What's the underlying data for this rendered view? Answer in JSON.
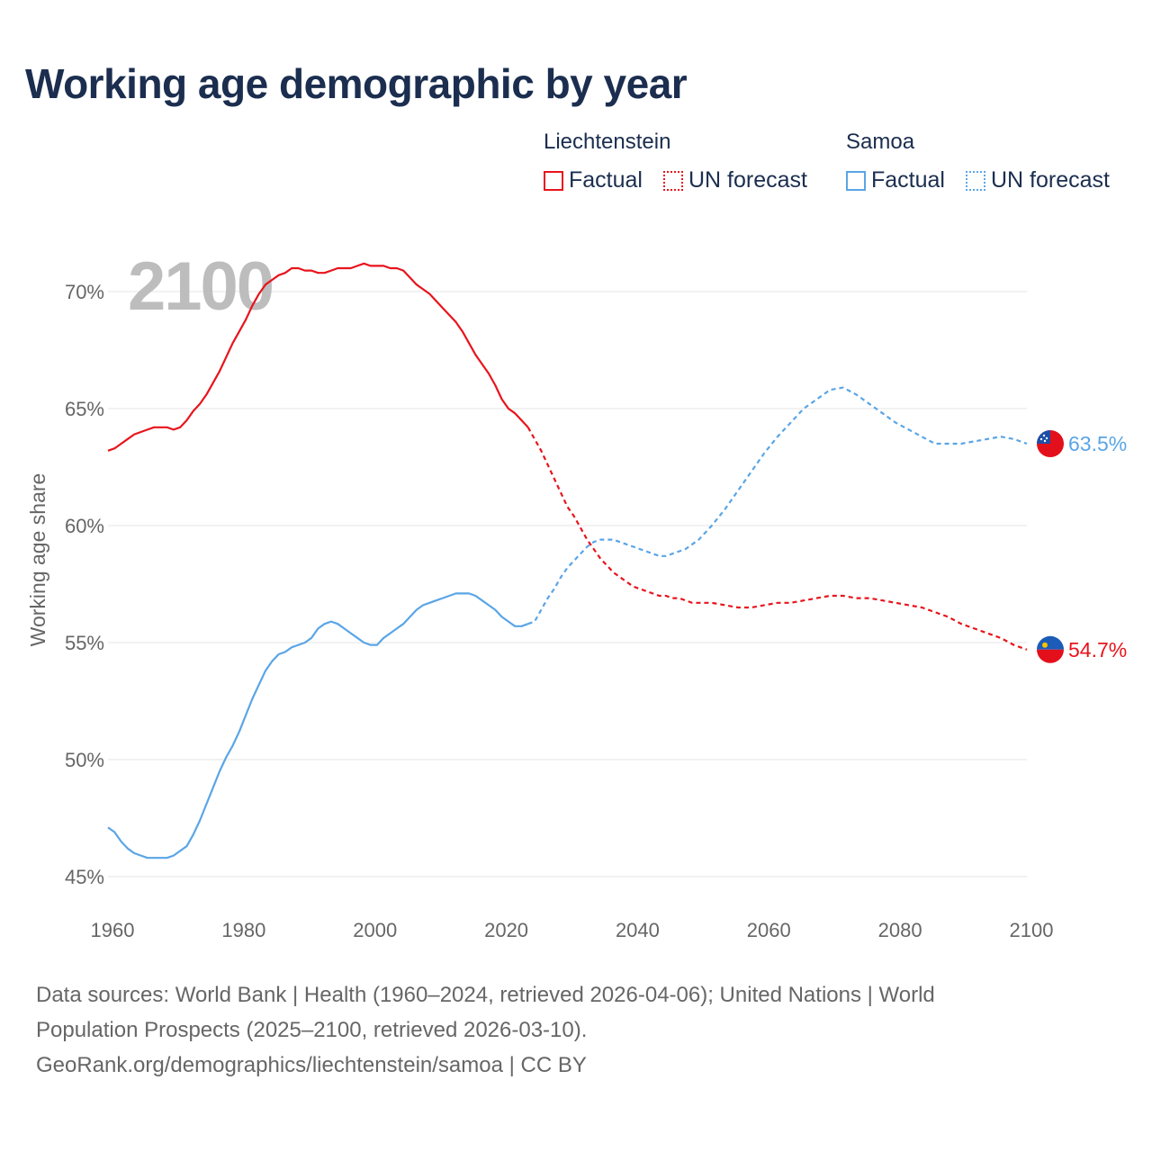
{
  "title": "Working age demographic by year",
  "legend": {
    "groups": [
      {
        "country": "Liechtenstein",
        "factual_label": "Factual",
        "forecast_label": "UN forecast",
        "color": "#e8141c"
      },
      {
        "country": "Samoa",
        "factual_label": "Factual",
        "forecast_label": "UN forecast",
        "color": "#5aa5e6"
      }
    ]
  },
  "colors": {
    "liechtenstein": "#e8141c",
    "samoa": "#5aa5e6",
    "grid": "#e6e6e6",
    "axis_text": "#666666",
    "year_watermark": "#bdbdbd"
  },
  "footer": {
    "line1": "Data sources: World Bank | Health (1960–2024, retrieved 2026-04-06); United Nations | World",
    "line2": "Population Prospects (2025–2100, retrieved 2026-03-10).",
    "line3": "GeoRank.org/demographics/liechtenstein/samoa | CC BY"
  },
  "chart_data": {
    "type": "line",
    "title": "Working age demographic by year",
    "ylabel": "Working age share",
    "xlabel": "",
    "year_watermark": "2100",
    "xlim": [
      1960,
      2100
    ],
    "ylim": [
      45,
      72
    ],
    "x_ticks": [
      1960,
      1980,
      2000,
      2020,
      2040,
      2060,
      2080,
      2100
    ],
    "y_ticks": [
      45,
      50,
      55,
      60,
      65,
      70
    ],
    "y_tick_labels": [
      "45%",
      "50%",
      "55%",
      "60%",
      "65%",
      "70%"
    ],
    "factual_range": [
      1960,
      2024
    ],
    "forecast_range": [
      2024,
      2100
    ],
    "series": [
      {
        "name": "Liechtenstein",
        "color": "#e8141c",
        "end_label": "54.7%",
        "points": [
          [
            1960,
            63.2
          ],
          [
            1961,
            63.3
          ],
          [
            1962,
            63.5
          ],
          [
            1963,
            63.7
          ],
          [
            1964,
            63.9
          ],
          [
            1965,
            64.0
          ],
          [
            1966,
            64.1
          ],
          [
            1967,
            64.2
          ],
          [
            1968,
            64.2
          ],
          [
            1969,
            64.2
          ],
          [
            1970,
            64.1
          ],
          [
            1971,
            64.2
          ],
          [
            1972,
            64.5
          ],
          [
            1973,
            64.9
          ],
          [
            1974,
            65.2
          ],
          [
            1975,
            65.6
          ],
          [
            1976,
            66.1
          ],
          [
            1977,
            66.6
          ],
          [
            1978,
            67.2
          ],
          [
            1979,
            67.8
          ],
          [
            1980,
            68.3
          ],
          [
            1981,
            68.8
          ],
          [
            1982,
            69.4
          ],
          [
            1983,
            69.9
          ],
          [
            1984,
            70.3
          ],
          [
            1985,
            70.5
          ],
          [
            1986,
            70.7
          ],
          [
            1987,
            70.8
          ],
          [
            1988,
            71.0
          ],
          [
            1989,
            71.0
          ],
          [
            1990,
            70.9
          ],
          [
            1991,
            70.9
          ],
          [
            1992,
            70.8
          ],
          [
            1993,
            70.8
          ],
          [
            1994,
            70.9
          ],
          [
            1995,
            71.0
          ],
          [
            1996,
            71.0
          ],
          [
            1997,
            71.0
          ],
          [
            1998,
            71.1
          ],
          [
            1999,
            71.2
          ],
          [
            2000,
            71.1
          ],
          [
            2001,
            71.1
          ],
          [
            2002,
            71.1
          ],
          [
            2003,
            71.0
          ],
          [
            2004,
            71.0
          ],
          [
            2005,
            70.9
          ],
          [
            2006,
            70.6
          ],
          [
            2007,
            70.3
          ],
          [
            2008,
            70.1
          ],
          [
            2009,
            69.9
          ],
          [
            2010,
            69.6
          ],
          [
            2011,
            69.3
          ],
          [
            2012,
            69.0
          ],
          [
            2013,
            68.7
          ],
          [
            2014,
            68.3
          ],
          [
            2015,
            67.8
          ],
          [
            2016,
            67.3
          ],
          [
            2017,
            66.9
          ],
          [
            2018,
            66.5
          ],
          [
            2019,
            66.0
          ],
          [
            2020,
            65.4
          ],
          [
            2021,
            65.0
          ],
          [
            2022,
            64.8
          ],
          [
            2023,
            64.5
          ],
          [
            2024,
            64.2
          ],
          [
            2025,
            63.7
          ],
          [
            2026,
            63.2
          ],
          [
            2027,
            62.6
          ],
          [
            2028,
            62.0
          ],
          [
            2029,
            61.4
          ],
          [
            2030,
            60.8
          ],
          [
            2031,
            60.4
          ],
          [
            2032,
            59.9
          ],
          [
            2033,
            59.4
          ],
          [
            2034,
            59.0
          ],
          [
            2035,
            58.6
          ],
          [
            2036,
            58.3
          ],
          [
            2037,
            58.0
          ],
          [
            2038,
            57.8
          ],
          [
            2039,
            57.6
          ],
          [
            2040,
            57.4
          ],
          [
            2041,
            57.3
          ],
          [
            2042,
            57.2
          ],
          [
            2043,
            57.1
          ],
          [
            2044,
            57.0
          ],
          [
            2045,
            57.0
          ],
          [
            2046,
            56.9
          ],
          [
            2047,
            56.9
          ],
          [
            2048,
            56.8
          ],
          [
            2049,
            56.7
          ],
          [
            2050,
            56.7
          ],
          [
            2052,
            56.7
          ],
          [
            2054,
            56.6
          ],
          [
            2056,
            56.5
          ],
          [
            2058,
            56.5
          ],
          [
            2060,
            56.6
          ],
          [
            2062,
            56.7
          ],
          [
            2064,
            56.7
          ],
          [
            2066,
            56.8
          ],
          [
            2068,
            56.9
          ],
          [
            2070,
            57.0
          ],
          [
            2072,
            57.0
          ],
          [
            2074,
            56.9
          ],
          [
            2076,
            56.9
          ],
          [
            2078,
            56.8
          ],
          [
            2080,
            56.7
          ],
          [
            2082,
            56.6
          ],
          [
            2084,
            56.5
          ],
          [
            2086,
            56.3
          ],
          [
            2088,
            56.1
          ],
          [
            2090,
            55.8
          ],
          [
            2092,
            55.6
          ],
          [
            2094,
            55.4
          ],
          [
            2096,
            55.2
          ],
          [
            2098,
            54.9
          ],
          [
            2100,
            54.7
          ]
        ]
      },
      {
        "name": "Samoa",
        "color": "#5aa5e6",
        "end_label": "63.5%",
        "points": [
          [
            1960,
            47.1
          ],
          [
            1961,
            46.9
          ],
          [
            1962,
            46.5
          ],
          [
            1963,
            46.2
          ],
          [
            1964,
            46.0
          ],
          [
            1965,
            45.9
          ],
          [
            1966,
            45.8
          ],
          [
            1967,
            45.8
          ],
          [
            1968,
            45.8
          ],
          [
            1969,
            45.8
          ],
          [
            1970,
            45.9
          ],
          [
            1971,
            46.1
          ],
          [
            1972,
            46.3
          ],
          [
            1973,
            46.8
          ],
          [
            1974,
            47.4
          ],
          [
            1975,
            48.1
          ],
          [
            1976,
            48.8
          ],
          [
            1977,
            49.5
          ],
          [
            1978,
            50.1
          ],
          [
            1979,
            50.6
          ],
          [
            1980,
            51.2
          ],
          [
            1981,
            51.9
          ],
          [
            1982,
            52.6
          ],
          [
            1983,
            53.2
          ],
          [
            1984,
            53.8
          ],
          [
            1985,
            54.2
          ],
          [
            1986,
            54.5
          ],
          [
            1987,
            54.6
          ],
          [
            1988,
            54.8
          ],
          [
            1989,
            54.9
          ],
          [
            1990,
            55.0
          ],
          [
            1991,
            55.2
          ],
          [
            1992,
            55.6
          ],
          [
            1993,
            55.8
          ],
          [
            1994,
            55.9
          ],
          [
            1995,
            55.8
          ],
          [
            1996,
            55.6
          ],
          [
            1997,
            55.4
          ],
          [
            1998,
            55.2
          ],
          [
            1999,
            55.0
          ],
          [
            2000,
            54.9
          ],
          [
            2001,
            54.9
          ],
          [
            2002,
            55.2
          ],
          [
            2003,
            55.4
          ],
          [
            2004,
            55.6
          ],
          [
            2005,
            55.8
          ],
          [
            2006,
            56.1
          ],
          [
            2007,
            56.4
          ],
          [
            2008,
            56.6
          ],
          [
            2009,
            56.7
          ],
          [
            2010,
            56.8
          ],
          [
            2011,
            56.9
          ],
          [
            2012,
            57.0
          ],
          [
            2013,
            57.1
          ],
          [
            2014,
            57.1
          ],
          [
            2015,
            57.1
          ],
          [
            2016,
            57.0
          ],
          [
            2017,
            56.8
          ],
          [
            2018,
            56.6
          ],
          [
            2019,
            56.4
          ],
          [
            2020,
            56.1
          ],
          [
            2021,
            55.9
          ],
          [
            2022,
            55.7
          ],
          [
            2023,
            55.7
          ],
          [
            2024,
            55.8
          ],
          [
            2025,
            55.9
          ],
          [
            2026,
            56.4
          ],
          [
            2027,
            56.9
          ],
          [
            2028,
            57.3
          ],
          [
            2029,
            57.8
          ],
          [
            2030,
            58.2
          ],
          [
            2031,
            58.5
          ],
          [
            2032,
            58.8
          ],
          [
            2033,
            59.1
          ],
          [
            2034,
            59.3
          ],
          [
            2035,
            59.4
          ],
          [
            2036,
            59.4
          ],
          [
            2037,
            59.4
          ],
          [
            2038,
            59.3
          ],
          [
            2039,
            59.2
          ],
          [
            2040,
            59.1
          ],
          [
            2041,
            59.0
          ],
          [
            2042,
            58.9
          ],
          [
            2043,
            58.8
          ],
          [
            2044,
            58.7
          ],
          [
            2045,
            58.7
          ],
          [
            2046,
            58.8
          ],
          [
            2047,
            58.9
          ],
          [
            2048,
            59.0
          ],
          [
            2049,
            59.2
          ],
          [
            2050,
            59.4
          ],
          [
            2052,
            60.0
          ],
          [
            2054,
            60.7
          ],
          [
            2056,
            61.5
          ],
          [
            2058,
            62.3
          ],
          [
            2060,
            63.1
          ],
          [
            2062,
            63.8
          ],
          [
            2064,
            64.4
          ],
          [
            2066,
            65.0
          ],
          [
            2068,
            65.4
          ],
          [
            2070,
            65.8
          ],
          [
            2072,
            65.9
          ],
          [
            2074,
            65.6
          ],
          [
            2076,
            65.2
          ],
          [
            2078,
            64.8
          ],
          [
            2080,
            64.4
          ],
          [
            2082,
            64.1
          ],
          [
            2084,
            63.8
          ],
          [
            2086,
            63.5
          ],
          [
            2088,
            63.5
          ],
          [
            2090,
            63.5
          ],
          [
            2092,
            63.6
          ],
          [
            2094,
            63.7
          ],
          [
            2096,
            63.8
          ],
          [
            2098,
            63.7
          ],
          [
            2100,
            63.5
          ]
        ]
      }
    ]
  }
}
